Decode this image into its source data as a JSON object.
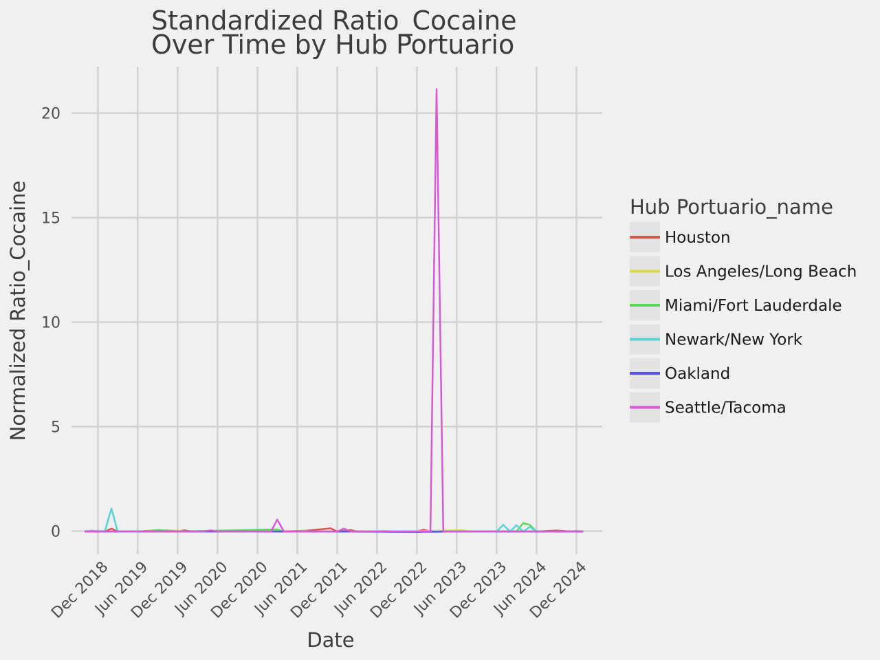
{
  "chart_data": {
    "type": "line",
    "title_lines": [
      "Standardized Ratio_Cocaine",
      "Over Time by Hub Portuario"
    ],
    "xlabel": "Date",
    "ylabel": "Normalized Ratio_Cocaine",
    "x_ticks": [
      "2018-12-01",
      "2019-06-01",
      "2019-12-01",
      "2020-06-01",
      "2020-12-01",
      "2021-06-01",
      "2021-12-01",
      "2022-06-01",
      "2022-12-01",
      "2023-06-01",
      "2023-12-01",
      "2024-06-01",
      "2024-12-01"
    ],
    "x_tick_labels": [
      "Dec 2018",
      "Jun 2019",
      "Dec 2019",
      "Jun 2020",
      "Dec 2020",
      "Jun 2021",
      "Dec 2021",
      "Jun 2022",
      "Dec 2022",
      "Jun 2023",
      "Dec 2023",
      "Jun 2024",
      "Dec 2024"
    ],
    "y_ticks": [
      0,
      5,
      10,
      15,
      20
    ],
    "xlim": [
      "2018-10-01",
      "2025-01-01"
    ],
    "ylim": [
      -1.0,
      22.2
    ],
    "grid": true,
    "legend": {
      "title": "Hub Portuario_name",
      "position": "right"
    },
    "series": [
      {
        "name": "Houston",
        "color": "#d9534f",
        "points": [
          [
            "2018-10-01",
            -0.02
          ],
          [
            "2019-01-01",
            -0.02
          ],
          [
            "2019-02-01",
            0.12
          ],
          [
            "2019-03-01",
            -0.02
          ],
          [
            "2019-06-01",
            -0.02
          ],
          [
            "2019-12-01",
            -0.02
          ],
          [
            "2020-01-01",
            0.04
          ],
          [
            "2020-02-01",
            -0.02
          ],
          [
            "2020-12-01",
            -0.02
          ],
          [
            "2021-06-01",
            -0.02
          ],
          [
            "2021-11-01",
            0.13
          ],
          [
            "2021-12-01",
            -0.02
          ],
          [
            "2022-02-01",
            0.05
          ],
          [
            "2022-03-01",
            -0.02
          ],
          [
            "2022-12-01",
            -0.02
          ],
          [
            "2023-01-01",
            0.07
          ],
          [
            "2023-02-01",
            -0.02
          ],
          [
            "2024-06-01",
            -0.02
          ],
          [
            "2024-09-01",
            0.03
          ],
          [
            "2024-11-01",
            -0.02
          ],
          [
            "2024-12-01",
            0.0
          ],
          [
            "2025-01-01",
            -0.02
          ]
        ]
      },
      {
        "name": "Los Angeles/Long Beach",
        "color": "#d6d84e",
        "points": [
          [
            "2018-10-01",
            -0.02
          ],
          [
            "2019-06-01",
            -0.02
          ],
          [
            "2019-12-01",
            0.02
          ],
          [
            "2020-01-01",
            -0.02
          ],
          [
            "2021-03-01",
            0.06
          ],
          [
            "2021-04-01",
            -0.02
          ],
          [
            "2022-06-01",
            -0.02
          ],
          [
            "2022-07-01",
            0.02
          ],
          [
            "2022-08-01",
            -0.02
          ],
          [
            "2023-07-01",
            0.04
          ],
          [
            "2023-08-01",
            -0.02
          ],
          [
            "2025-01-01",
            -0.02
          ]
        ]
      },
      {
        "name": "Miami/Fort Lauderdale",
        "color": "#5cd65c",
        "points": [
          [
            "2018-10-01",
            -0.02
          ],
          [
            "2019-06-01",
            -0.02
          ],
          [
            "2019-09-01",
            0.05
          ],
          [
            "2019-11-01",
            0.02
          ],
          [
            "2019-12-01",
            -0.02
          ],
          [
            "2021-03-01",
            0.08
          ],
          [
            "2021-04-01",
            -0.02
          ],
          [
            "2021-07-01",
            0.02
          ],
          [
            "2021-08-01",
            -0.02
          ],
          [
            "2024-03-01",
            -0.02
          ],
          [
            "2024-04-01",
            0.38
          ],
          [
            "2024-05-01",
            0.3
          ],
          [
            "2024-06-01",
            -0.02
          ],
          [
            "2025-01-01",
            -0.02
          ]
        ]
      },
      {
        "name": "Newark/New York",
        "color": "#5bd3d3",
        "points": [
          [
            "2018-10-01",
            -0.02
          ],
          [
            "2018-11-01",
            0.02
          ],
          [
            "2019-01-01",
            -0.02
          ],
          [
            "2019-02-01",
            1.08
          ],
          [
            "2019-03-01",
            -0.02
          ],
          [
            "2022-06-01",
            -0.02
          ],
          [
            "2023-12-01",
            -0.02
          ],
          [
            "2024-01-01",
            0.3
          ],
          [
            "2024-02-01",
            -0.02
          ],
          [
            "2024-03-01",
            0.28
          ],
          [
            "2024-04-01",
            -0.02
          ],
          [
            "2024-05-01",
            0.2
          ],
          [
            "2024-06-01",
            -0.02
          ],
          [
            "2025-01-01",
            -0.02
          ]
        ]
      },
      {
        "name": "Oakland",
        "color": "#5858d6",
        "points": [
          [
            "2018-10-01",
            -0.02
          ],
          [
            "2020-06-01",
            -0.02
          ],
          [
            "2020-12-01",
            -0.02
          ],
          [
            "2021-06-01",
            -0.02
          ],
          [
            "2021-12-01",
            -0.02
          ],
          [
            "2022-12-01",
            -0.04
          ],
          [
            "2023-06-01",
            -0.02
          ],
          [
            "2024-06-01",
            -0.02
          ],
          [
            "2025-01-01",
            -0.02
          ]
        ]
      },
      {
        "name": "Seattle/Tacoma",
        "color": "#d65ad6",
        "points": [
          [
            "2018-10-01",
            -0.02
          ],
          [
            "2020-04-01",
            -0.02
          ],
          [
            "2020-05-01",
            0.04
          ],
          [
            "2020-06-01",
            -0.02
          ],
          [
            "2021-02-01",
            -0.02
          ],
          [
            "2021-03-01",
            0.55
          ],
          [
            "2021-04-01",
            -0.02
          ],
          [
            "2021-12-01",
            -0.02
          ],
          [
            "2022-01-01",
            0.12
          ],
          [
            "2022-02-01",
            -0.02
          ],
          [
            "2023-02-01",
            -0.02
          ],
          [
            "2023-03-01",
            21.15
          ],
          [
            "2023-04-01",
            -0.02
          ],
          [
            "2025-01-01",
            -0.02
          ]
        ]
      }
    ]
  }
}
